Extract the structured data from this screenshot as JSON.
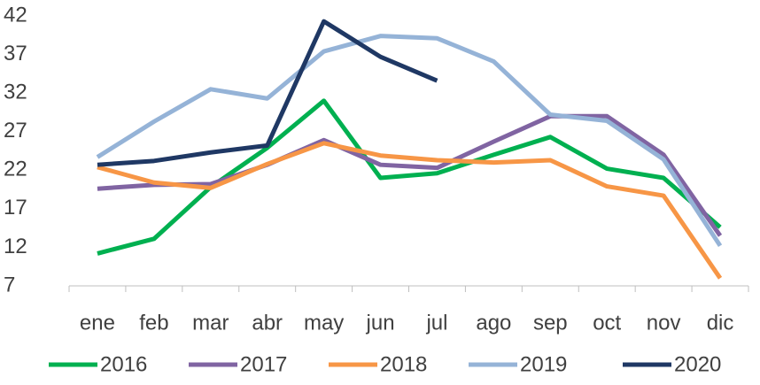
{
  "chart_data": {
    "type": "line",
    "categories": [
      "ene",
      "feb",
      "mar",
      "abr",
      "may",
      "jun",
      "jul",
      "ago",
      "sep",
      "oct",
      "nov",
      "dic"
    ],
    "series": [
      {
        "name": "2016",
        "color": "#00b050",
        "values": [
          11.2,
          13.1,
          19.8,
          24.9,
          31.0,
          21.0,
          21.6,
          24.0,
          26.3,
          22.2,
          21.0,
          14.6
        ]
      },
      {
        "name": "2017",
        "color": "#8064a2",
        "values": [
          19.6,
          20.1,
          20.2,
          22.7,
          25.9,
          22.7,
          22.3,
          25.7,
          29.0,
          29.0,
          24.0,
          13.5
        ]
      },
      {
        "name": "2018",
        "color": "#f79646",
        "values": [
          22.4,
          20.4,
          19.7,
          22.8,
          25.5,
          23.9,
          23.3,
          23.0,
          23.3,
          19.9,
          18.7,
          8.0
        ]
      },
      {
        "name": "2019",
        "color": "#95b3d7",
        "values": [
          23.7,
          28.3,
          32.5,
          31.3,
          37.4,
          39.4,
          39.1,
          36.1,
          29.2,
          28.4,
          23.4,
          12.2
        ]
      },
      {
        "name": "2020",
        "color": "#1f3864",
        "values": [
          22.7,
          23.2,
          24.3,
          25.2,
          41.3,
          36.7,
          33.6,
          null,
          null,
          null,
          null,
          null
        ]
      }
    ],
    "ylim": [
      7,
      42
    ],
    "yticks": [
      7,
      12,
      17,
      22,
      27,
      32,
      37,
      42
    ],
    "grid": false,
    "legend": "bottom"
  }
}
